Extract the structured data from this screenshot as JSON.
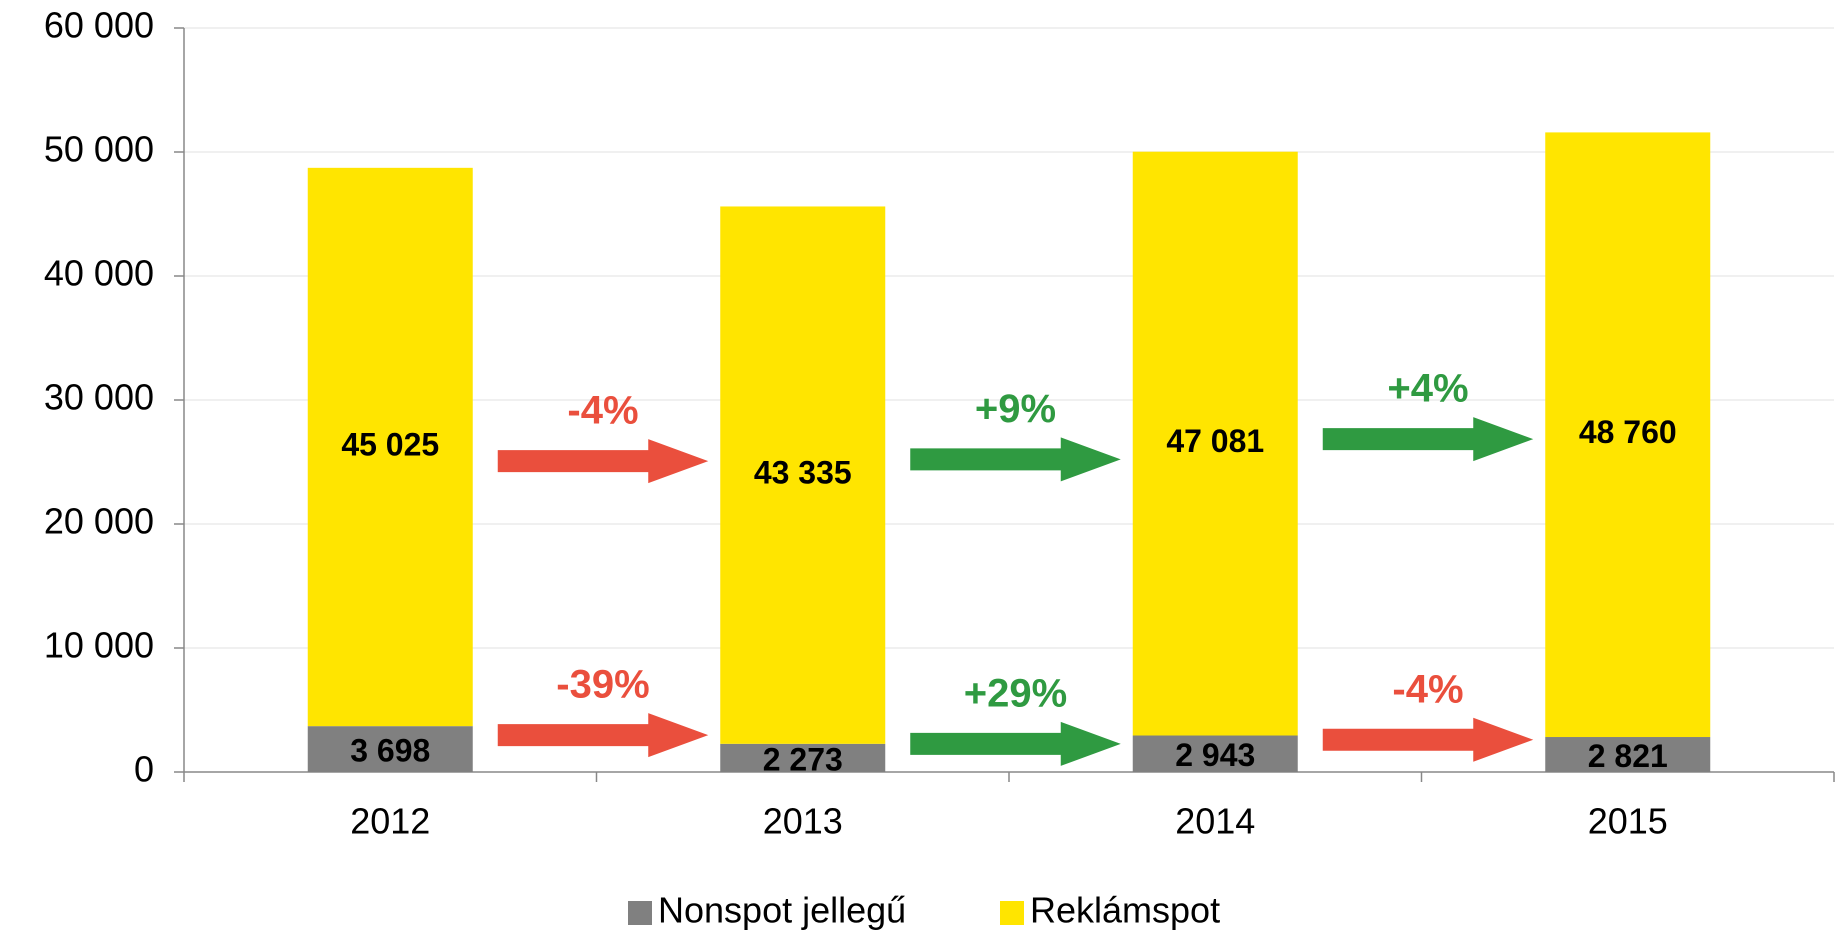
{
  "chart_data": {
    "type": "stacked_bar",
    "categories": [
      "2012",
      "2013",
      "2014",
      "2015"
    ],
    "series": [
      {
        "name": "Nonspot jellegű",
        "color": "#808080",
        "values": [
          3698,
          2273,
          2943,
          2821
        ],
        "value_labels": [
          "3 698",
          "2 273",
          "2 943",
          "2 821"
        ],
        "change_labels": [
          "-39%",
          "+29%",
          "-4%"
        ],
        "change_colors": [
          "#ea4f3d",
          "#2f9a41",
          "#ea4f3d"
        ]
      },
      {
        "name": "Reklámspot",
        "color": "#ffe500",
        "values": [
          45025,
          43335,
          47081,
          48760
        ],
        "value_labels": [
          "45 025",
          "43 335",
          "47 081",
          "48 760"
        ],
        "change_labels": [
          "-4%",
          "+9%",
          "+4%"
        ],
        "change_colors": [
          "#ea4f3d",
          "#2f9a41",
          "#2f9a41"
        ]
      }
    ],
    "ylim": [
      0,
      60000
    ],
    "yticks": [
      0,
      {
        "value": 10000,
        "label": "10 000"
      },
      {
        "value": 20000,
        "label": "20 000"
      },
      {
        "value": 30000,
        "label": "30 000"
      },
      {
        "value": 40000,
        "label": "40 000"
      },
      {
        "value": 50000,
        "label": "50 000"
      },
      {
        "value": 60000,
        "label": "60 000"
      }
    ],
    "grid": true,
    "legend": "bottom"
  }
}
